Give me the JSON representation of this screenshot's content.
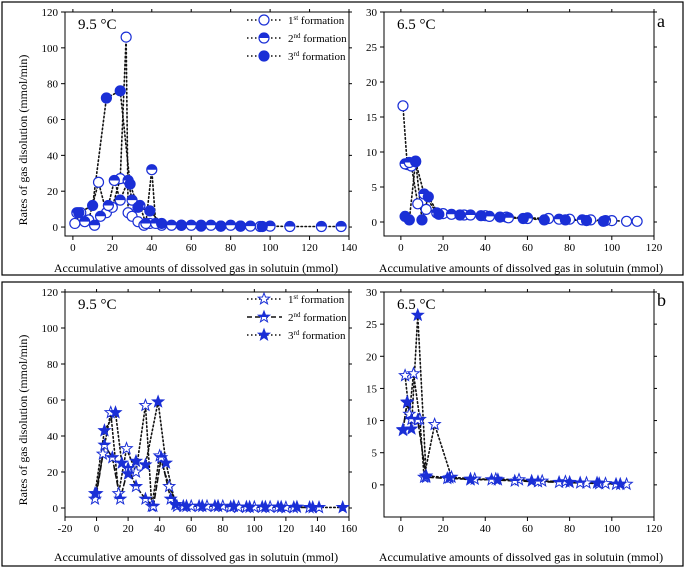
{
  "figure": {
    "shared_ylabel": "Rates of gas disolution (mmol/min)",
    "shared_xlabel": "Accumulative amounts of dissolved gas in solutuin (mmol)"
  },
  "legend_a": {
    "entries": [
      {
        "prefix": "1",
        "sup": "st",
        "text": " formation"
      },
      {
        "prefix": "2",
        "sup": "nd",
        "text": " formation"
      },
      {
        "prefix": "3",
        "sup": "rd",
        "text": " formation"
      }
    ]
  },
  "legend_b": {
    "entries": [
      {
        "prefix": "1",
        "sup": "st",
        "text": " formation"
      },
      {
        "prefix": "2",
        "sup": "nd",
        "text": " formation"
      },
      {
        "prefix": "3",
        "sup": "rd",
        "text": " formation"
      }
    ]
  },
  "colors": {
    "series": "#1a2fd6",
    "frame": "#000000",
    "text": "#000000"
  },
  "chart_data": [
    {
      "id": "a-left",
      "panel": "a",
      "type": "scatter",
      "title": "9.5 °C",
      "xlabel": "Accumulative amounts of dissolved gas in solutuin (mmol)",
      "ylabel": "Rates of gas disolution (mmol/min)",
      "xlim": [
        -4,
        140
      ],
      "ylim": [
        -5,
        120
      ],
      "xticks": [
        0,
        20,
        40,
        60,
        80,
        100,
        120,
        140
      ],
      "yticks": [
        0,
        20,
        40,
        60,
        80,
        100,
        120
      ],
      "marker_style": "circle",
      "series": [
        {
          "name": "1st formation",
          "marker": "open",
          "line": "dotted",
          "x": [
            1,
            4,
            8,
            13,
            17,
            20,
            24,
            27,
            28,
            30,
            33,
            36,
            39,
            45,
            55,
            65,
            75,
            85,
            95
          ],
          "y": [
            2,
            8,
            4,
            25,
            8,
            11,
            27,
            106,
            8,
            6,
            3,
            1,
            2,
            1,
            1,
            0.5,
            0.5,
            0.5,
            0.3
          ]
        },
        {
          "name": "2nd formation",
          "marker": "half",
          "line": "dotted",
          "x": [
            2,
            6,
            11,
            14,
            18,
            21,
            24,
            28,
            30,
            34,
            37,
            40,
            42,
            50,
            60,
            70,
            80,
            90,
            100,
            110,
            126,
            136
          ],
          "y": [
            8,
            3,
            1,
            6,
            12,
            26,
            15,
            26,
            15,
            12,
            2,
            32,
            2,
            1,
            1,
            1,
            1,
            0.5,
            0.5,
            0.3,
            0.3,
            0.3
          ]
        },
        {
          "name": "3rd formation",
          "marker": "filled",
          "line": "dotted",
          "x": [
            3,
            10,
            17,
            24,
            29,
            33,
            39,
            45,
            55,
            65,
            75,
            85,
            96
          ],
          "y": [
            8,
            12,
            72,
            76,
            24,
            11,
            9,
            2,
            1,
            1,
            0.5,
            0.5,
            0.3
          ]
        }
      ]
    },
    {
      "id": "a-right",
      "panel": "a",
      "type": "scatter",
      "title": "6.5 °C",
      "xlabel": "Accumulative amounts of dissolved gas in solutuin (mmol)",
      "xlim": [
        -8,
        120
      ],
      "ylim": [
        -2,
        30
      ],
      "xticks": [
        0,
        20,
        40,
        60,
        80,
        100,
        120
      ],
      "yticks": [
        0,
        5,
        10,
        15,
        20,
        25,
        30
      ],
      "marker_style": "circle",
      "series": [
        {
          "name": "1st formation",
          "marker": "open",
          "line": "dotted",
          "x": [
            1,
            3,
            5,
            8,
            12,
            20,
            30,
            40,
            50,
            60,
            70,
            80,
            90,
            100,
            107,
            112
          ],
          "y": [
            16.6,
            8.2,
            8,
            2.6,
            1.8,
            1.2,
            1,
            0.9,
            0.7,
            0.6,
            0.5,
            0.4,
            0.3,
            0.2,
            0.1,
            0.1
          ]
        },
        {
          "name": "2nd formation",
          "marker": "half",
          "line": "dotted",
          "x": [
            2,
            4,
            7,
            11,
            17,
            24,
            33,
            42,
            51,
            60,
            75,
            86,
            97
          ],
          "y": [
            8.3,
            8.5,
            8.6,
            4,
            1.3,
            1.1,
            1,
            0.8,
            0.6,
            0.5,
            0.4,
            0.3,
            0.2
          ]
        },
        {
          "name": "3rd formation",
          "marker": "filled",
          "line": "dotted",
          "x": [
            2,
            4,
            7,
            10,
            13,
            18,
            28,
            38,
            47,
            58,
            68,
            78,
            88,
            96
          ],
          "y": [
            0.8,
            0.3,
            8.7,
            0.3,
            3.6,
            1.1,
            1,
            0.9,
            0.7,
            0.5,
            0.3,
            0.3,
            0.2,
            0.1
          ]
        }
      ]
    },
    {
      "id": "b-left",
      "panel": "b",
      "type": "scatter",
      "title": "9.5 °C",
      "xlabel": "Accumulative amounts of dissolved gas in solutuin (mmol)",
      "ylabel": "Rates of gas disolution (mmol/min)",
      "xlim": [
        -20,
        160
      ],
      "ylim": [
        -5,
        120
      ],
      "xticks": [
        -20,
        0,
        20,
        40,
        60,
        80,
        100,
        120,
        140,
        160
      ],
      "yticks": [
        0,
        20,
        40,
        60,
        80,
        100,
        120
      ],
      "marker_style": "star",
      "series": [
        {
          "name": "1st formation",
          "marker": "open",
          "line": "dotted",
          "x": [
            -1,
            4,
            9,
            14,
            19,
            25,
            31,
            35,
            40,
            46,
            51,
            60,
            70,
            80,
            90,
            100,
            110,
            120
          ],
          "y": [
            5,
            30,
            53,
            8,
            33,
            20,
            57,
            1,
            29,
            12,
            1,
            1,
            1,
            1,
            0.5,
            0.5,
            0.5,
            0.3
          ]
        },
        {
          "name": "2nd formation",
          "marker": "half",
          "line": "dashed",
          "x": [
            0,
            5,
            10,
            15,
            20,
            25,
            31,
            36,
            41,
            47,
            55,
            65,
            75,
            85,
            95,
            105,
            115,
            125,
            135,
            141
          ],
          "y": [
            8,
            35,
            28,
            5,
            22,
            12,
            5,
            1,
            28,
            5,
            1,
            1,
            1,
            0.5,
            0.5,
            0.5,
            0.5,
            0.3,
            0.3,
            0.3
          ]
        },
        {
          "name": "3rd formation",
          "marker": "filled",
          "line": "dotted",
          "x": [
            -1,
            5,
            12,
            16,
            20,
            25,
            31,
            39,
            44,
            50,
            57,
            67,
            77,
            87,
            97,
            107,
            117,
            127,
            137,
            156
          ],
          "y": [
            8,
            43,
            53,
            25,
            19,
            26,
            24,
            59,
            25,
            2,
            1,
            1,
            1,
            1,
            0.5,
            0.5,
            0.5,
            0.5,
            0.3,
            0.3
          ]
        }
      ]
    },
    {
      "id": "b-right",
      "panel": "b",
      "type": "scatter",
      "title": "6.5 °C",
      "xlabel": "Accumulative amounts of dissolved gas in solutuin (mmol)",
      "xlim": [
        -8,
        120
      ],
      "ylim": [
        -5,
        30
      ],
      "xticks": [
        0,
        20,
        40,
        60,
        80,
        100,
        120
      ],
      "yticks": [
        0,
        5,
        10,
        15,
        20,
        25,
        30
      ],
      "marker_style": "star",
      "series": [
        {
          "name": "1st formation",
          "marker": "open",
          "line": "dotted",
          "x": [
            2,
            4,
            6,
            9,
            11,
            16,
            24,
            35,
            45,
            56,
            67,
            78,
            88,
            97,
            107
          ],
          "y": [
            17,
            11,
            17.3,
            10.2,
            1.2,
            9.4,
            1.2,
            0.9,
            0.9,
            0.8,
            0.6,
            0.5,
            0.3,
            0.2,
            0.1
          ]
        },
        {
          "name": "2nd formation",
          "marker": "half",
          "line": "dashed",
          "x": [
            1,
            3,
            5,
            8,
            12,
            22,
            33,
            43,
            54,
            65,
            75,
            85,
            94,
            102
          ],
          "y": [
            8.6,
            12.9,
            10.2,
            10.1,
            1.2,
            1,
            0.9,
            0.8,
            0.6,
            0.5,
            0.4,
            0.3,
            0.2,
            0.1
          ]
        },
        {
          "name": "3rd formation",
          "marker": "filled",
          "line": "dotted",
          "x": [
            1,
            3,
            5,
            8,
            12,
            23,
            33,
            46,
            62,
            80,
            93,
            104
          ],
          "y": [
            8.5,
            12.8,
            8.7,
            26.4,
            1.4,
            1.1,
            0.8,
            0.8,
            0.6,
            0.4,
            0.3,
            0.1
          ]
        }
      ]
    }
  ]
}
